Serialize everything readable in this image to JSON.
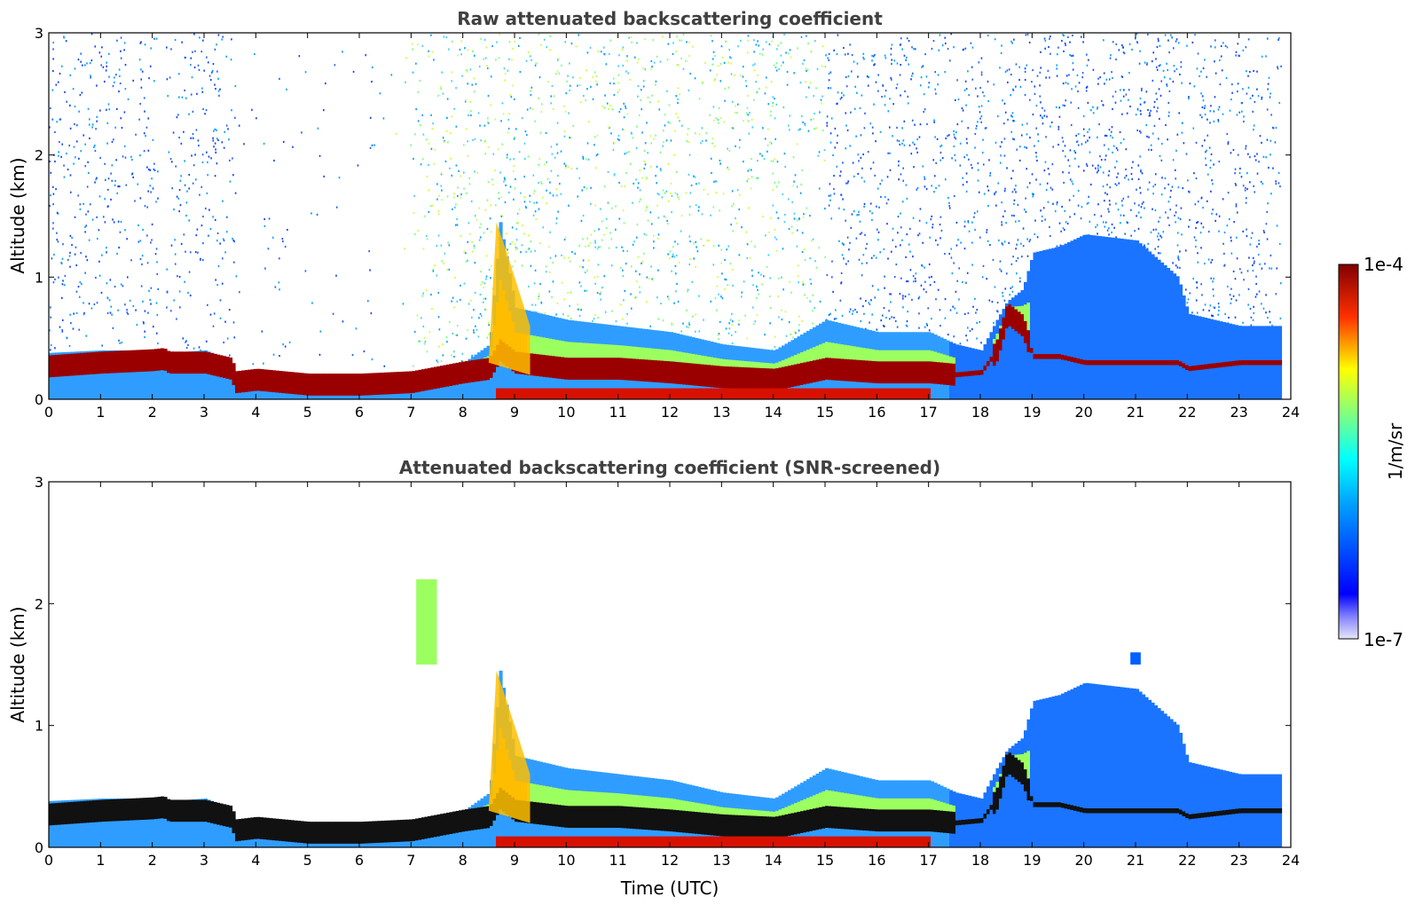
{
  "chart_data": [
    {
      "type": "heatmap",
      "title": "Raw attenuated backscattering coefficient",
      "xlabel": "",
      "ylabel": "Altitude (km)",
      "xlim": [
        0,
        24
      ],
      "ylim": [
        0,
        3
      ],
      "xticks": [
        "0",
        "1",
        "2",
        "3",
        "4",
        "5",
        "6",
        "7",
        "8",
        "9",
        "10",
        "11",
        "12",
        "13",
        "14",
        "15",
        "16",
        "17",
        "18",
        "19",
        "20",
        "21",
        "22",
        "23",
        "24"
      ],
      "yticks": [
        "0",
        "1",
        "2",
        "3"
      ],
      "colorscale": "jet",
      "boundary_layer": {
        "hours": [
          0,
          1,
          2,
          2.2,
          2.3,
          3,
          3.5,
          3.6,
          4,
          4.5,
          5,
          6,
          7,
          7.5,
          8,
          8.5,
          8.7,
          9,
          10,
          11,
          12,
          13,
          14,
          15,
          16,
          17,
          17.5,
          18,
          18.3,
          18.5,
          18.8,
          19,
          19.5,
          20,
          21,
          21.8,
          22,
          23,
          23.8
        ],
        "top_km": [
          0.38,
          0.4,
          0.4,
          0.4,
          0.38,
          0.4,
          0.32,
          0.2,
          0.2,
          0.2,
          0.18,
          0.2,
          0.22,
          0.25,
          0.3,
          0.45,
          1.45,
          0.75,
          0.65,
          0.6,
          0.55,
          0.45,
          0.4,
          0.65,
          0.55,
          0.55,
          0.45,
          0.4,
          0.65,
          0.8,
          0.9,
          1.2,
          1.25,
          1.35,
          1.3,
          1.0,
          0.7,
          0.6,
          0.6
        ],
        "strong_layer_km": [
          0.27,
          0.3,
          0.32,
          0.33,
          0.3,
          0.3,
          0.25,
          0.14,
          0.16,
          0.14,
          0.12,
          0.12,
          0.14,
          0.18,
          0.22,
          0.25,
          0.4,
          0.3,
          0.25,
          0.25,
          0.22,
          0.18,
          0.16,
          0.25,
          0.22,
          0.22,
          0.2,
          0.22,
          0.4,
          0.7,
          0.6,
          0.35,
          0.35,
          0.3,
          0.3,
          0.3,
          0.25,
          0.3,
          0.3
        ]
      }
    },
    {
      "type": "heatmap",
      "title": "Attenuated backscattering coefficient (SNR-screened)",
      "xlabel": "Time (UTC)",
      "ylabel": "Altitude (km)",
      "xlim": [
        0,
        24
      ],
      "ylim": [
        0,
        3
      ],
      "xticks": [
        "0",
        "1",
        "2",
        "3",
        "4",
        "5",
        "6",
        "7",
        "8",
        "9",
        "10",
        "11",
        "12",
        "13",
        "14",
        "15",
        "16",
        "17",
        "18",
        "19",
        "20",
        "21",
        "22",
        "23",
        "24"
      ],
      "yticks": [
        "0",
        "1",
        "2",
        "3"
      ],
      "colorscale": "jet",
      "features": [
        {
          "hours": [
            7.1,
            7.5
          ],
          "altitude_km": [
            1.5,
            2.2
          ]
        },
        {
          "hours": [
            20.9,
            21.1
          ],
          "altitude_km": [
            1.5,
            1.6
          ]
        }
      ]
    }
  ],
  "colorbar": {
    "label": "1/m/sr",
    "max_label": "1e-4",
    "min_label": "1e-7"
  },
  "colors": {
    "axis": "#000000",
    "title": "#404040"
  }
}
